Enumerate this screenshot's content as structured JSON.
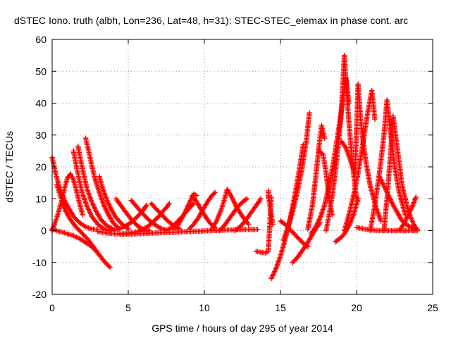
{
  "chart_data": {
    "type": "scatter",
    "title": "dSTEC Iono. truth (albh, Lon=236, Lat=48, h=31): STEC-STEC_elemax in phase cont. arc",
    "xlabel": "GPS time / hours of day 295 of year 2014",
    "ylabel": "dSTEC  / TECUs",
    "xlim": [
      0,
      25
    ],
    "ylim": [
      -20,
      60
    ],
    "xticks": [
      0,
      5,
      10,
      15,
      20,
      25
    ],
    "yticks": [
      -20,
      -10,
      0,
      10,
      20,
      30,
      40,
      50,
      60
    ],
    "grid": true,
    "legend": "none",
    "marker": "plus",
    "color": "#ff0000",
    "series": [
      {
        "x": [
          0.0,
          0.2,
          0.4,
          0.7,
          1.0,
          1.4,
          1.8,
          2.2,
          2.6,
          3.0,
          3.4,
          3.8
        ],
        "y": [
          0.5,
          0.2,
          -0.2,
          -0.5,
          -1.0,
          -1.6,
          -2.5,
          -3.7,
          -5.0,
          -7.0,
          -9.5,
          -11.5
        ]
      },
      {
        "x": [
          0.0,
          0.1,
          0.2,
          0.4,
          0.6,
          0.8,
          1.1,
          1.4,
          1.8,
          2.2,
          2.6,
          3.0
        ],
        "y": [
          23.0,
          21.0,
          18.5,
          15.0,
          12.0,
          9.5,
          7.0,
          4.5,
          2.5,
          1.2,
          0.5,
          0.3
        ]
      },
      {
        "x": [
          0.0,
          0.2,
          0.4,
          0.6,
          0.8,
          1.0,
          1.2,
          1.4,
          1.6,
          1.8,
          2.0
        ],
        "y": [
          0.0,
          2.5,
          5.5,
          9.0,
          13.0,
          16.5,
          17.8,
          16.0,
          12.5,
          8.5,
          5.0
        ]
      },
      {
        "x": [
          0.3,
          0.5,
          0.7,
          0.9,
          1.2,
          1.5,
          1.9,
          2.3,
          2.7,
          3.0
        ],
        "y": [
          14.5,
          11.5,
          8.5,
          6.0,
          3.5,
          1.5,
          -0.5,
          -2.5,
          -5.0,
          -7.0
        ]
      },
      {
        "x": [
          1.4,
          1.6,
          1.8,
          2.0,
          2.3,
          2.6,
          3.0,
          3.4,
          3.8
        ],
        "y": [
          25.0,
          20.0,
          15.5,
          11.5,
          7.5,
          4.5,
          2.0,
          0.5,
          0.0
        ]
      },
      {
        "x": [
          1.7,
          1.9,
          2.1,
          2.3,
          2.6,
          2.9,
          3.2,
          3.6,
          4.0
        ],
        "y": [
          26.5,
          21.5,
          17.0,
          13.0,
          9.0,
          6.0,
          3.5,
          1.5,
          0.5
        ]
      },
      {
        "x": [
          2.2,
          2.4,
          2.6,
          2.8,
          3.1,
          3.4,
          3.7,
          4.0,
          4.4
        ],
        "y": [
          29.0,
          25.0,
          20.5,
          16.5,
          12.0,
          8.0,
          5.0,
          2.5,
          0.5
        ]
      },
      {
        "x": [
          3.1,
          3.3,
          3.6,
          3.9,
          4.2,
          4.6,
          5.0
        ],
        "y": [
          17.0,
          13.5,
          9.5,
          6.5,
          4.0,
          2.0,
          0.5
        ]
      },
      {
        "x": [
          3.0,
          3.4,
          3.8,
          4.2,
          4.6,
          5.0,
          5.4,
          5.8,
          6.2
        ],
        "y": [
          -0.3,
          -0.6,
          -0.9,
          -1.0,
          -1.0,
          -0.8,
          -0.5,
          -0.2,
          0.0
        ]
      },
      {
        "x": [
          4.2,
          4.5,
          4.8,
          5.2,
          5.6,
          6.0,
          6.4
        ],
        "y": [
          10.0,
          8.0,
          6.0,
          3.5,
          1.5,
          0.3,
          0.0
        ]
      },
      {
        "x": [
          3.8,
          4.1,
          4.4,
          4.8,
          5.2,
          5.6,
          6.0,
          6.2
        ],
        "y": [
          0.0,
          0.2,
          0.6,
          1.4,
          2.6,
          4.4,
          6.5,
          8.0
        ]
      },
      {
        "x": [
          5.2,
          5.5,
          5.9,
          6.3,
          6.7,
          7.1,
          7.5
        ],
        "y": [
          9.5,
          7.8,
          5.6,
          3.6,
          2.0,
          0.8,
          0.2
        ]
      },
      {
        "x": [
          5.8,
          6.0,
          6.3,
          6.6,
          7.0,
          7.3,
          7.5,
          7.7
        ],
        "y": [
          0.0,
          0.5,
          1.4,
          2.6,
          4.4,
          6.2,
          7.2,
          8.5
        ]
      },
      {
        "x": [
          6.5,
          6.8,
          7.2,
          7.6,
          8.0,
          8.4
        ],
        "y": [
          8.5,
          7.0,
          5.0,
          3.0,
          1.5,
          0.5
        ]
      },
      {
        "x": [
          7.5,
          7.8,
          8.1,
          8.5,
          8.9,
          9.3
        ],
        "y": [
          0.0,
          0.8,
          2.2,
          4.2,
          6.4,
          8.5
        ]
      },
      {
        "x": [
          8.0,
          8.3,
          8.6,
          8.9,
          9.1,
          9.3,
          9.5
        ],
        "y": [
          0.5,
          2.0,
          4.5,
          7.5,
          9.5,
          11.5,
          11.0
        ]
      },
      {
        "x": [
          9.2,
          9.5,
          9.8,
          10.1,
          10.4,
          10.7
        ],
        "y": [
          11.0,
          9.0,
          6.5,
          4.2,
          2.2,
          1.0
        ]
      },
      {
        "x": [
          9.0,
          9.3,
          9.6,
          9.9,
          10.2,
          10.5,
          10.7
        ],
        "y": [
          0.5,
          2.0,
          4.0,
          6.5,
          9.0,
          11.0,
          12.0
        ]
      },
      {
        "x": [
          10.5,
          10.8,
          11.1,
          11.3,
          11.5,
          11.8,
          12.1,
          12.5,
          12.9
        ],
        "y": [
          0.5,
          3.0,
          6.5,
          9.5,
          13.0,
          10.5,
          7.5,
          4.5,
          2.0
        ]
      },
      {
        "x": [
          11.0,
          11.3,
          11.6,
          11.9,
          12.2,
          12.5,
          12.8
        ],
        "y": [
          0.0,
          1.5,
          3.5,
          5.5,
          7.5,
          9.0,
          10.0
        ]
      },
      {
        "x": [
          12.0,
          12.3,
          12.6,
          12.9,
          13.2,
          13.5,
          13.7
        ],
        "y": [
          0.0,
          1.0,
          2.5,
          4.5,
          6.5,
          8.5,
          10.0
        ]
      },
      {
        "x": [
          4.5,
          5.5,
          6.5,
          7.5,
          8.5,
          9.5,
          10.5,
          11.5,
          12.5,
          13.5
        ],
        "y": [
          -1.2,
          -1.0,
          -0.8,
          -0.6,
          -0.4,
          -0.2,
          0.0,
          0.2,
          0.3,
          0.4
        ]
      },
      {
        "x": [
          13.4,
          13.7,
          14.0,
          14.2,
          14.4
        ],
        "y": [
          -6.5,
          -6.8,
          -7.0,
          -6.5,
          10.5
        ]
      },
      {
        "x": [
          14.2,
          14.2,
          14.3,
          14.5
        ],
        "y": [
          10.0,
          12.5,
          8.0,
          2.0
        ]
      },
      {
        "x": [
          14.4,
          14.7,
          15.0,
          15.3,
          15.6,
          15.9,
          16.2,
          16.5
        ],
        "y": [
          -15.0,
          -12.0,
          -8.0,
          -3.0,
          3.0,
          10.0,
          18.0,
          27.0
        ]
      },
      {
        "x": [
          15.2,
          15.5,
          15.8,
          16.1,
          16.4,
          16.7,
          16.9
        ],
        "y": [
          -3.0,
          1.0,
          6.0,
          12.0,
          19.0,
          28.0,
          37.0
        ]
      },
      {
        "x": [
          15.0,
          15.3,
          15.6,
          15.9,
          16.2,
          16.5,
          16.8
        ],
        "y": [
          3.0,
          2.0,
          0.5,
          -1.0,
          -2.5,
          -4.0,
          -5.0
        ]
      },
      {
        "x": [
          15.8,
          16.1,
          16.4,
          16.7,
          17.0,
          17.3,
          17.6
        ],
        "y": [
          -10.0,
          -8.5,
          -6.5,
          -4.5,
          -2.0,
          0.5,
          2.5
        ]
      },
      {
        "x": [
          16.8,
          17.1,
          17.3,
          17.5,
          17.7,
          17.9
        ],
        "y": [
          0.5,
          8.0,
          16.0,
          25.0,
          33.0,
          29.0
        ]
      },
      {
        "x": [
          17.5,
          17.8,
          18.0,
          18.2,
          18.4
        ],
        "y": [
          25.0,
          24.0,
          18.0,
          10.0,
          5.0
        ]
      },
      {
        "x": [
          17.0,
          17.3,
          17.6,
          17.9,
          18.2,
          18.5,
          18.8,
          19.1,
          19.3,
          19.5
        ],
        "y": [
          -1.0,
          1.0,
          4.0,
          8.0,
          14.0,
          22.0,
          31.0,
          41.0,
          48.0,
          40.0
        ]
      },
      {
        "x": [
          18.0,
          18.2,
          18.4,
          18.6,
          18.8,
          19.0,
          19.2,
          19.4,
          19.6,
          19.8,
          20.0
        ],
        "y": [
          0.0,
          5.0,
          11.0,
          18.0,
          27.0,
          37.0,
          55.0,
          40.0,
          28.0,
          18.0,
          10.0
        ]
      },
      {
        "x": [
          19.0,
          19.3,
          19.6,
          19.9,
          20.1,
          20.3,
          20.6,
          20.9,
          21.3,
          21.6
        ],
        "y": [
          28.0,
          26.0,
          22.0,
          18.0,
          46.0,
          33.0,
          22.0,
          14.0,
          7.0,
          3.0
        ]
      },
      {
        "x": [
          18.6,
          18.9,
          19.2,
          19.5,
          19.8,
          20.1
        ],
        "y": [
          -3.5,
          -2.5,
          -1.0,
          1.5,
          5.0,
          10.0
        ]
      },
      {
        "x": [
          19.2,
          19.5,
          19.8,
          20.1,
          20.4,
          20.7,
          21.0,
          21.2
        ],
        "y": [
          0.0,
          5.0,
          11.0,
          18.0,
          27.0,
          36.0,
          44.0,
          35.0
        ]
      },
      {
        "x": [
          20.9,
          21.2,
          21.5,
          21.8,
          22.0,
          22.2,
          22.5,
          22.8,
          23.2
        ],
        "y": [
          0.0,
          8.0,
          18.0,
          30.0,
          41.0,
          32.0,
          20.0,
          12.0,
          5.0
        ]
      },
      {
        "x": [
          21.5,
          21.8,
          22.1,
          22.4,
          22.7,
          23.0,
          23.4,
          23.8
        ],
        "y": [
          17.0,
          14.0,
          11.0,
          8.0,
          5.5,
          3.0,
          1.5,
          0.5
        ]
      },
      {
        "x": [
          21.8,
          22.0,
          22.2,
          22.4,
          22.7,
          23.0,
          23.4,
          23.8,
          24.0
        ],
        "y": [
          0.0,
          10.0,
          22.0,
          36.0,
          25.0,
          14.0,
          6.0,
          1.5,
          0.3
        ]
      },
      {
        "x": [
          22.8,
          23.1,
          23.4,
          23.7,
          23.9
        ],
        "y": [
          0.0,
          2.0,
          5.0,
          8.0,
          10.5
        ]
      },
      {
        "x": [
          20.0,
          20.5,
          21.0,
          21.5,
          22.0,
          22.5,
          23.0,
          23.5,
          24.0
        ],
        "y": [
          1.0,
          0.5,
          0.2,
          0.0,
          0.0,
          0.0,
          0.0,
          0.0,
          0.0
        ]
      }
    ]
  }
}
